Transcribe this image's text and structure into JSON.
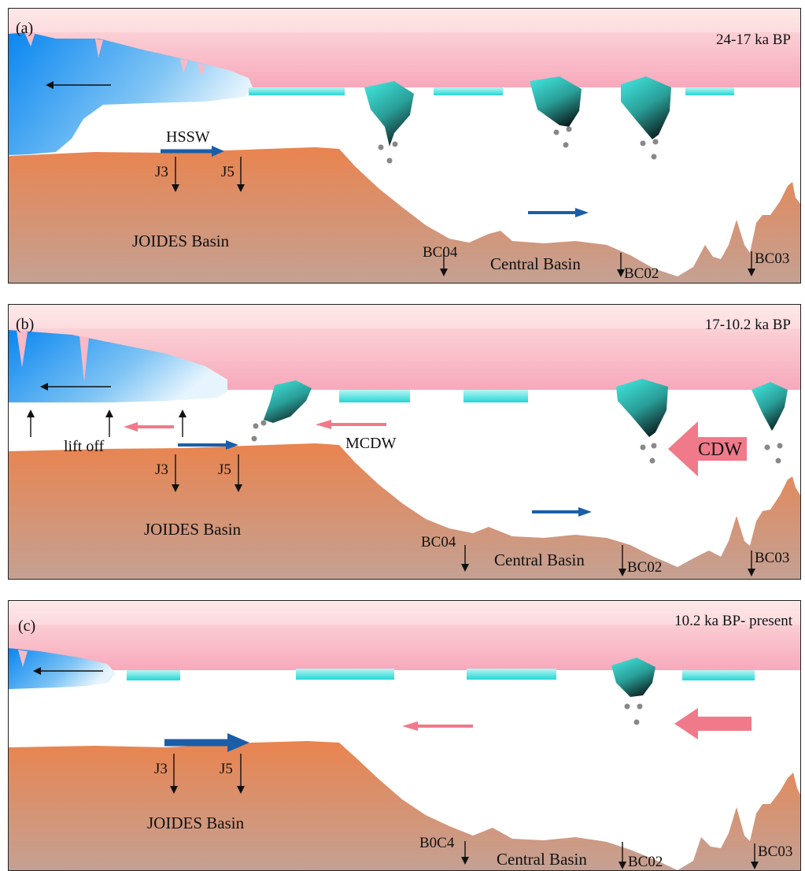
{
  "panels": [
    {
      "label": "(a)",
      "period": "24-17 ka BP",
      "basin_left": "JOIDES Basin",
      "basin_center": "Central Basin",
      "cores": [
        "J3",
        "J5",
        "BC04",
        "BC02",
        "BC03"
      ],
      "water_masses": [
        "HSSW"
      ]
    },
    {
      "label": "(b)",
      "period": "17-10.2 ka BP",
      "basin_left": "JOIDES Basin",
      "basin_center": "Central Basin",
      "cores": [
        "J3",
        "J5",
        "BC04",
        "BC02",
        "BC03"
      ],
      "annotations": [
        "lift off"
      ],
      "water_masses": [
        "MCDW",
        "CDW"
      ]
    },
    {
      "label": "(c)",
      "period": "10.2 ka BP- present",
      "basin_left": "JOIDES Basin",
      "basin_center": "Central Basin",
      "cores": [
        "J3",
        "J5",
        "B0C4",
        "BC02",
        "BC03"
      ]
    }
  ],
  "colors": {
    "sky_top": "#f7b2bf",
    "seafloor_top": "#e8875a",
    "seafloor_bottom": "#c49b8d",
    "ice_shelf": "#1e8fe8",
    "sea_ice": "#33d8d8",
    "iceberg": "#3ad6d0",
    "cold_water_arrow": "#1b5ea8",
    "warm_water_arrow": "#f07a8a"
  }
}
